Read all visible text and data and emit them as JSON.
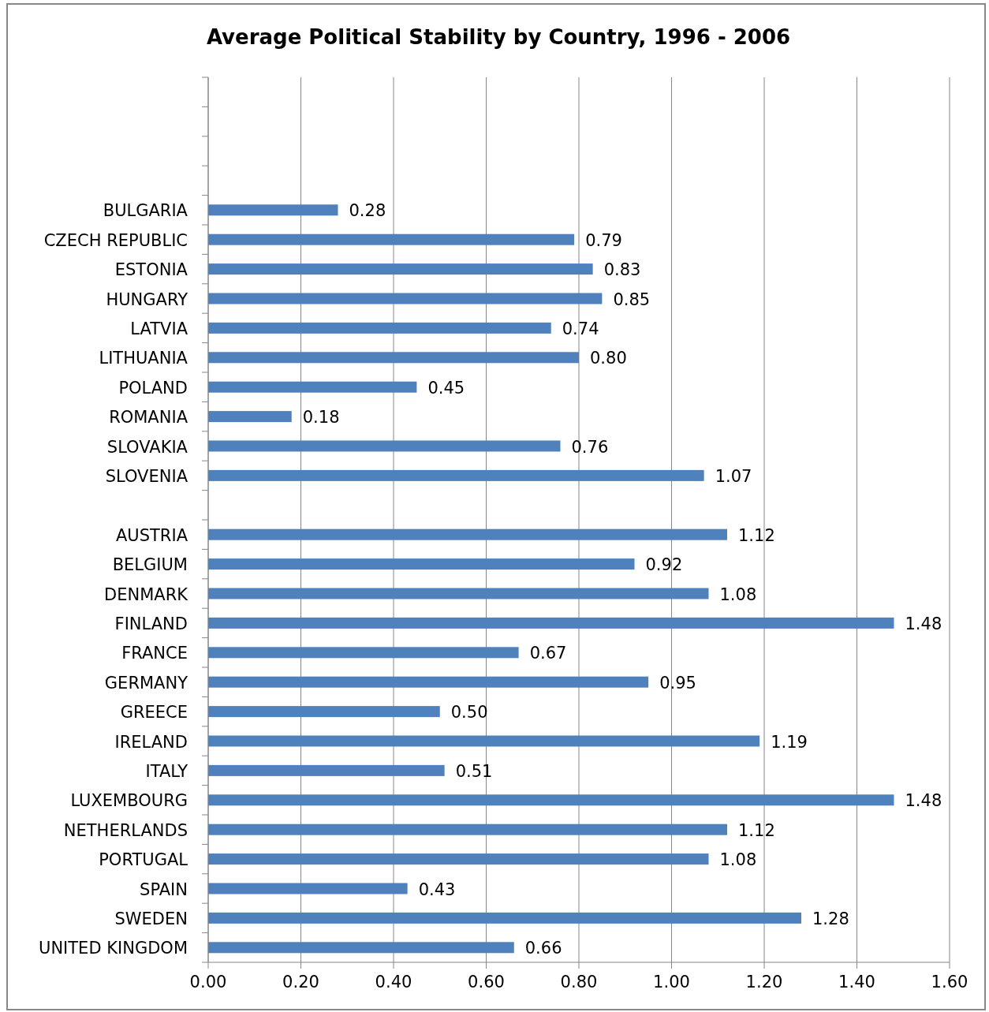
{
  "chart_data": {
    "type": "bar",
    "orientation": "horizontal",
    "title": "Average Political Stability by Country, 1996 - 2006",
    "categories": [
      null,
      null,
      null,
      null,
      "BULGARIA",
      "CZECH REPUBLIC",
      "ESTONIA",
      "HUNGARY",
      "LATVIA",
      "LITHUANIA",
      "POLAND",
      "ROMANIA",
      "SLOVAKIA",
      "SLOVENIA",
      null,
      "AUSTRIA",
      "BELGIUM",
      "DENMARK",
      "FINLAND",
      "FRANCE",
      "GERMANY",
      "GREECE",
      "IRELAND",
      "ITALY",
      "LUXEMBOURG",
      "NETHERLANDS",
      "PORTUGAL",
      "SPAIN",
      "SWEDEN",
      "UNITED KINGDOM"
    ],
    "values": [
      null,
      null,
      null,
      null,
      0.28,
      0.79,
      0.83,
      0.85,
      0.74,
      0.8,
      0.45,
      0.18,
      0.76,
      1.07,
      null,
      1.12,
      0.92,
      1.08,
      1.48,
      0.67,
      0.95,
      0.5,
      1.19,
      0.51,
      1.48,
      1.12,
      1.08,
      0.43,
      1.28,
      0.66
    ],
    "value_labels": [
      null,
      null,
      null,
      null,
      "0.28",
      "0.79",
      "0.83",
      "0.85",
      "0.74",
      "0.80",
      "0.45",
      "0.18",
      "0.76",
      "1.07",
      null,
      "1.12",
      "0.92",
      "1.08",
      "1.48",
      "0.67",
      "0.95",
      "0.50",
      "1.19",
      "0.51",
      "1.48",
      "1.12",
      "1.08",
      "0.43",
      "1.28",
      "0.66"
    ],
    "color": "#4f81bd",
    "xlim": [
      0,
      1.6
    ],
    "xticks": [
      {
        "value": 0,
        "label": "0.00"
      },
      {
        "value": 0.2,
        "label": "0.20"
      },
      {
        "value": 0.4,
        "label": "0.40"
      },
      {
        "value": 0.6,
        "label": "0.60"
      },
      {
        "value": 0.8,
        "label": "0.80"
      },
      {
        "value": 1.0,
        "label": "1.00"
      },
      {
        "value": 1.2,
        "label": "1.20"
      },
      {
        "value": 1.4,
        "label": "1.40"
      },
      {
        "value": 1.6,
        "label": "1.60"
      }
    ],
    "grid": "x"
  }
}
